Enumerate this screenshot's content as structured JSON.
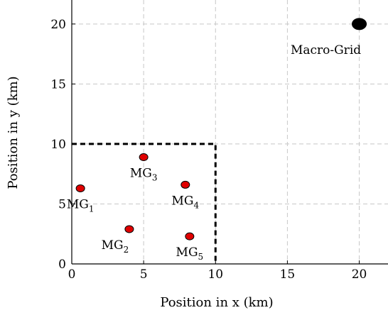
{
  "chart_data": {
    "type": "scatter",
    "xlabel": "Position in x (km)",
    "ylabel": "Position in y (km)",
    "xlim": [
      0,
      22
    ],
    "ylim": [
      0,
      22
    ],
    "xticks": [
      0,
      5,
      10,
      15,
      20
    ],
    "yticks": [
      0,
      5,
      10,
      15,
      20
    ],
    "grid": true,
    "series": [
      {
        "points": [
          {
            "x": 0.6,
            "y": 6.3,
            "label": "MG",
            "sub": "1",
            "label_pos": "below"
          },
          {
            "x": 4.0,
            "y": 2.9,
            "label": "MG",
            "sub": "2",
            "label_pos": "below-left"
          },
          {
            "x": 5.0,
            "y": 8.9,
            "label": "MG",
            "sub": "3",
            "label_pos": "below"
          },
          {
            "x": 7.9,
            "y": 6.6,
            "label": "MG",
            "sub": "4",
            "label_pos": "below"
          },
          {
            "x": 8.2,
            "y": 2.3,
            "label": "MG",
            "sub": "5",
            "label_pos": "below"
          }
        ],
        "color": "#e00000"
      },
      {
        "points": [
          {
            "x": 20,
            "y": 20,
            "label": "Macro-Grid",
            "sub": "",
            "label_pos": "below"
          }
        ],
        "color": "#000000"
      }
    ],
    "region": {
      "x": [
        0,
        10
      ],
      "y": [
        0,
        10
      ],
      "style": "dashed"
    }
  }
}
